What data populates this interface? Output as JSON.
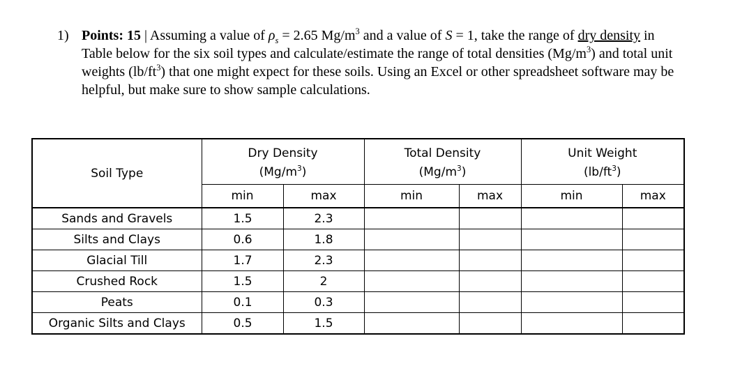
{
  "question": {
    "number": "1)",
    "points_label": "Points: 15",
    "separator": " | ",
    "text_a": "Assuming a value of ",
    "rho_symbol": "ρ",
    "rho_sub": "s",
    "text_b": " = 2.65 Mg/m",
    "sup3_a": "3",
    "text_c": " and a value of ",
    "s_symbol": "S",
    "text_d": " = 1, take the range of ",
    "underlined": "dry density",
    "text_e": " in Table below for the six soil types and calculate/estimate the range of total densities (Mg/m",
    "sup3_b": "3",
    "text_f": ") and total unit weights (lb/ft",
    "sup3_c": "3",
    "text_g": ") that one might expect for these soils. Using an Excel or other spreadsheet software may be helpful, but make sure to show sample calculations."
  },
  "table": {
    "soil_type_header": "Soil Type",
    "groups": [
      {
        "title": "Dry Density",
        "unit_pre": "(Mg/m",
        "unit_sup": "3",
        "unit_post": ")"
      },
      {
        "title": "Total Density",
        "unit_pre": "(Mg/m",
        "unit_sup": "3",
        "unit_post": ")"
      },
      {
        "title": "Unit Weight",
        "unit_pre": "(lb/ft",
        "unit_sup": "3",
        "unit_post": ")"
      }
    ],
    "min_label": "min",
    "max_label": "max",
    "rows": [
      {
        "soil": "Sands and Gravels",
        "dry_min": "1.5",
        "dry_max": "2.3",
        "tot_min": "",
        "tot_max": "",
        "uw_min": "",
        "uw_max": ""
      },
      {
        "soil": "Silts and Clays",
        "dry_min": "0.6",
        "dry_max": "1.8",
        "tot_min": "",
        "tot_max": "",
        "uw_min": "",
        "uw_max": ""
      },
      {
        "soil": "Glacial Till",
        "dry_min": "1.7",
        "dry_max": "2.3",
        "tot_min": "",
        "tot_max": "",
        "uw_min": "",
        "uw_max": ""
      },
      {
        "soil": "Crushed Rock",
        "dry_min": "1.5",
        "dry_max": "2",
        "tot_min": "",
        "tot_max": "",
        "uw_min": "",
        "uw_max": ""
      },
      {
        "soil": "Peats",
        "dry_min": "0.1",
        "dry_max": "0.3",
        "tot_min": "",
        "tot_max": "",
        "uw_min": "",
        "uw_max": ""
      },
      {
        "soil": "Organic Silts and Clays",
        "dry_min": "0.5",
        "dry_max": "1.5",
        "tot_min": "",
        "tot_max": "",
        "uw_min": "",
        "uw_max": ""
      }
    ]
  }
}
